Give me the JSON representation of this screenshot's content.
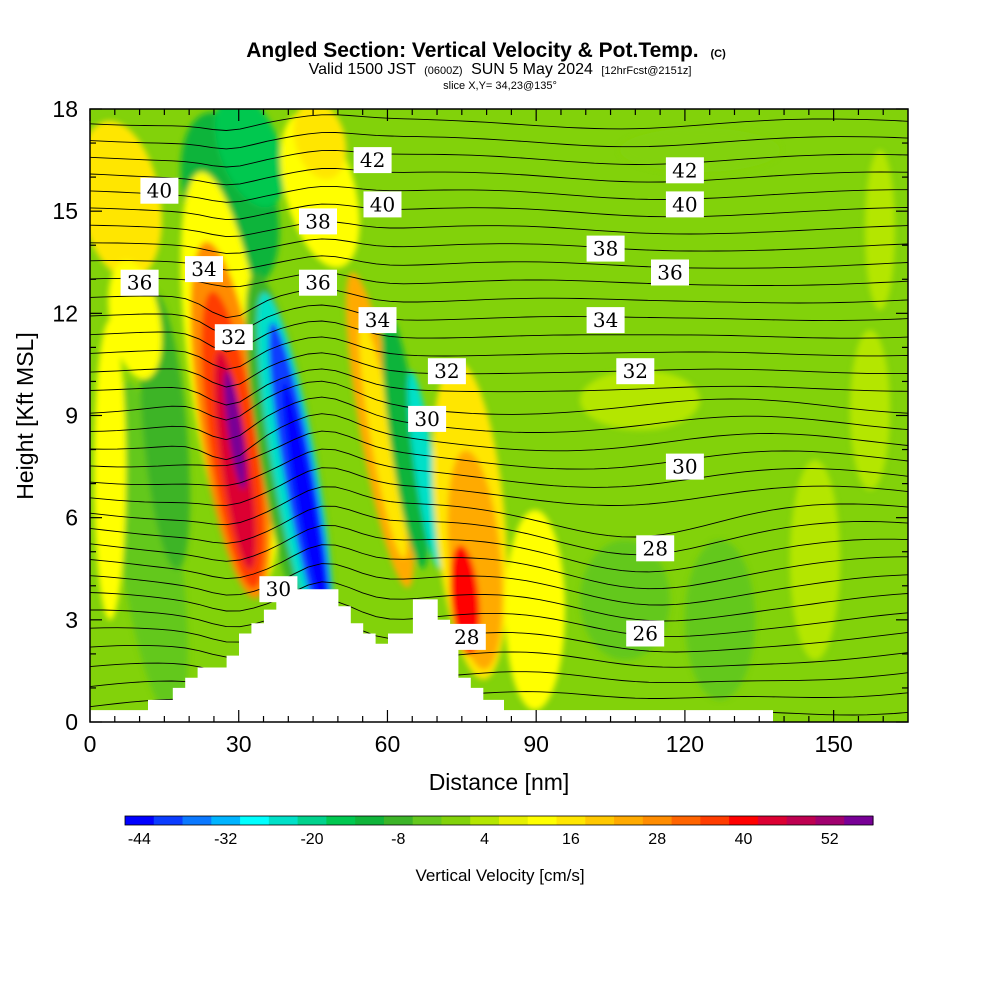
{
  "title": {
    "main": "Angled Section: Vertical Velocity & Pot.Temp.",
    "main_units": "(C)",
    "valid_prefix": "Valid 1500 JST",
    "valid_utc": "(0600Z)",
    "valid_date": "SUN 5 May 2024",
    "forecast": "[12hrFcst@2151z]",
    "slice": "slice X,Y= 34,23@135°"
  },
  "chart_data": {
    "type": "heatmap",
    "xlabel": "Distance [nm]",
    "ylabel": "Height [Kft MSL]",
    "xlim": [
      0,
      165
    ],
    "ylim": [
      0,
      18
    ],
    "x_ticks": [
      "0",
      "30",
      "60",
      "90",
      "120",
      "150"
    ],
    "y_ticks": [
      "0",
      "3",
      "6",
      "9",
      "12",
      "15",
      "18"
    ],
    "colorbar": {
      "label": "Vertical Velocity [cm/s]",
      "tick_labels": [
        "-44",
        "-32",
        "-20",
        "-8",
        "4",
        "16",
        "28",
        "40",
        "52"
      ],
      "levels": [
        -44,
        -40,
        -36,
        -32,
        -28,
        -24,
        -20,
        -16,
        -12,
        -8,
        -4,
        0,
        4,
        8,
        12,
        16,
        20,
        24,
        28,
        32,
        36,
        40,
        44,
        48,
        52,
        56
      ],
      "colors": [
        "#0000ff",
        "#0a3cff",
        "#0a78ff",
        "#00b4ff",
        "#00ffff",
        "#00e0c8",
        "#00d28c",
        "#00c850",
        "#10b43a",
        "#3cb428",
        "#64c81e",
        "#82d20a",
        "#b4e600",
        "#e6f000",
        "#ffff00",
        "#ffe600",
        "#ffc800",
        "#ffaa00",
        "#ff8c00",
        "#ff6400",
        "#ff3c00",
        "#ff0000",
        "#dc0032",
        "#be0050",
        "#a0006e",
        "#780096"
      ]
    },
    "theta_labels": [
      {
        "value": "42",
        "x": 57,
        "y": 16.5
      },
      {
        "value": "42",
        "x": 120,
        "y": 16.2
      },
      {
        "value": "40",
        "x": 14,
        "y": 15.6
      },
      {
        "value": "40",
        "x": 59,
        "y": 15.2
      },
      {
        "value": "40",
        "x": 120,
        "y": 15.2
      },
      {
        "value": "38",
        "x": 46,
        "y": 14.7
      },
      {
        "value": "38",
        "x": 104,
        "y": 13.9
      },
      {
        "value": "36",
        "x": 10,
        "y": 12.9
      },
      {
        "value": "36",
        "x": 46,
        "y": 12.9
      },
      {
        "value": "36",
        "x": 117,
        "y": 13.2
      },
      {
        "value": "34",
        "x": 23,
        "y": 13.3
      },
      {
        "value": "34",
        "x": 58,
        "y": 11.8
      },
      {
        "value": "34",
        "x": 104,
        "y": 11.8
      },
      {
        "value": "32",
        "x": 29,
        "y": 11.3
      },
      {
        "value": "32",
        "x": 72,
        "y": 10.3
      },
      {
        "value": "32",
        "x": 110,
        "y": 10.3
      },
      {
        "value": "30",
        "x": 68,
        "y": 8.9
      },
      {
        "value": "30",
        "x": 120,
        "y": 7.5
      },
      {
        "value": "30",
        "x": 38,
        "y": 3.9
      },
      {
        "value": "28",
        "x": 114,
        "y": 5.1
      },
      {
        "value": "28",
        "x": 76,
        "y": 2.5
      },
      {
        "value": "26",
        "x": 112,
        "y": 2.6
      }
    ]
  }
}
